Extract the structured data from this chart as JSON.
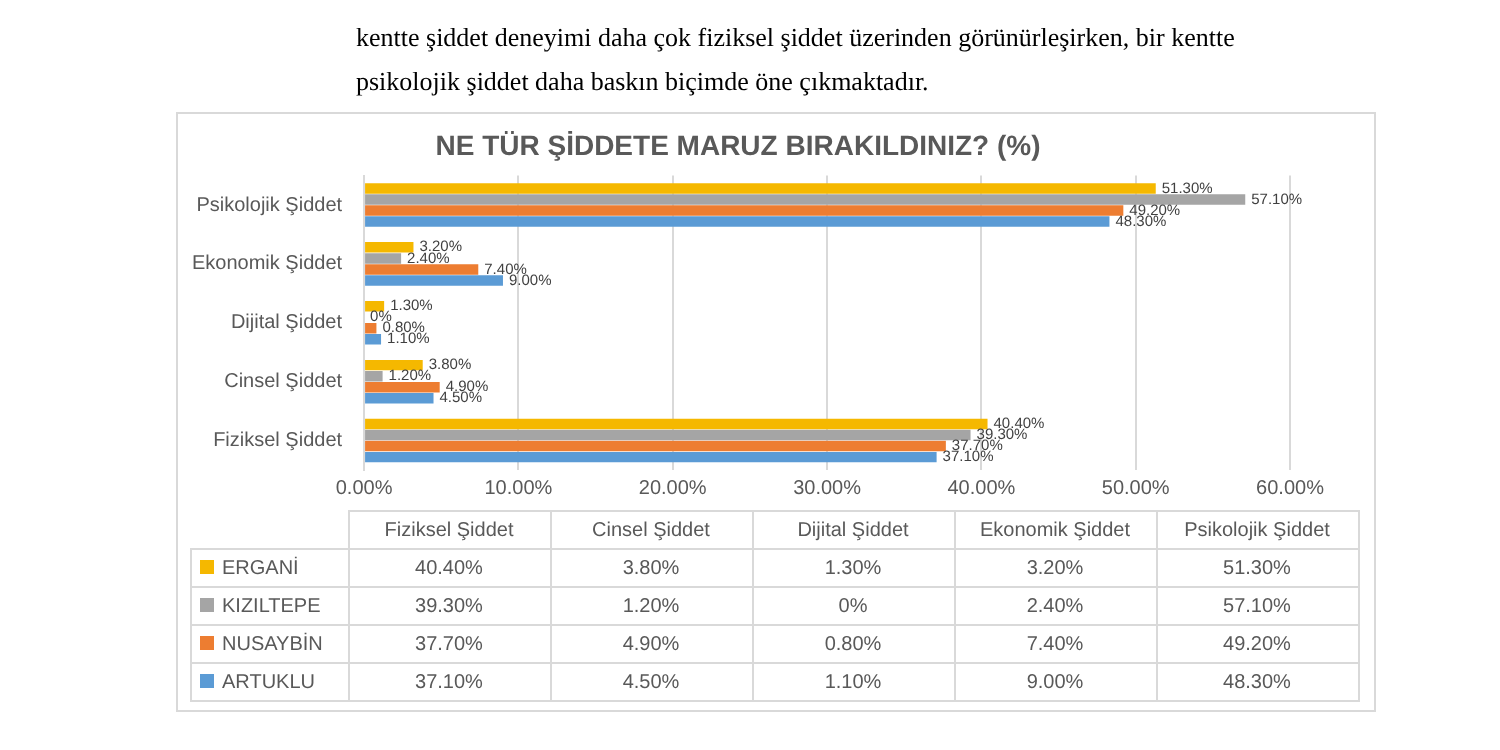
{
  "chart_data": {
    "type": "bar",
    "orientation": "horizontal",
    "title": "NE TÜR ŞİDDETE MARUZ BIRAKILDINIZ? (%)",
    "annotations": [
      "kentte şiddet deneyimi daha çok fiziksel şiddet üzerinden görünürleşirken, bir kentte psikolojik şiddet daha baskın biçimde öne çıkmaktadır."
    ],
    "categories": [
      "Psikolojik Şiddet",
      "Ekonomik Şiddet",
      "Dijital Şiddet",
      "Cinsel Şiddet",
      "Fiziksel Şiddet"
    ],
    "series": [
      {
        "name": "ERGANİ",
        "color": "#f5b800",
        "values": [
          51.3,
          3.2,
          1.3,
          3.8,
          40.4
        ],
        "value_labels": [
          "51.30%",
          "3.20%",
          "1.30%",
          "3.80%",
          "40.40%"
        ]
      },
      {
        "name": "KIZILTEPE",
        "color": "#a5a5a5",
        "values": [
          57.1,
          2.4,
          0,
          1.2,
          39.3
        ],
        "value_labels": [
          "57.10%",
          "2.40%",
          "0%",
          "1.20%",
          "39.30%"
        ]
      },
      {
        "name": "NUSAYBİN",
        "color": "#ed7d31",
        "values": [
          49.2,
          7.4,
          0.8,
          4.9,
          37.7
        ],
        "value_labels": [
          "49.20%",
          "7.40%",
          "0.80%",
          "4.90%",
          "37.70%"
        ]
      },
      {
        "name": "ARTUKLU",
        "color": "#5b9bd5",
        "values": [
          48.3,
          9.0,
          1.1,
          4.5,
          37.1
        ],
        "value_labels": [
          "48.30%",
          "9.00%",
          "1.10%",
          "4.50%",
          "37.10%"
        ]
      }
    ],
    "xlim": [
      0,
      60
    ],
    "xticks": [
      {
        "value": 0,
        "label": "0.00%"
      },
      {
        "value": 10,
        "label": "10.00%"
      },
      {
        "value": 20,
        "label": "20.00%"
      },
      {
        "value": 30,
        "label": "30.00%"
      },
      {
        "value": 40,
        "label": "40.00%"
      },
      {
        "value": 50,
        "label": "50.00%"
      },
      {
        "value": 60,
        "label": "60.00%"
      }
    ],
    "grid": "x",
    "legend": "bottom"
  }
}
